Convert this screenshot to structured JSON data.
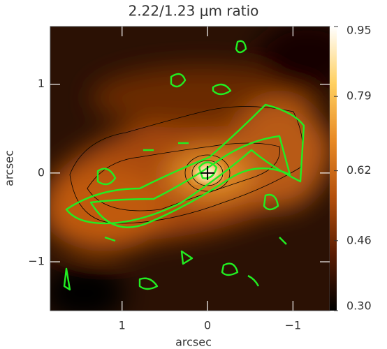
{
  "chart_data": {
    "type": "image",
    "title": "2.22/1.23 μm ratio",
    "x_label": "arcsec",
    "y_label": "arcsec",
    "xlim": [
      1.84,
      -1.43
    ],
    "ylim": [
      -1.55,
      1.65
    ],
    "xticks": [
      1,
      0,
      {
        "value": -1,
        "label": "−1"
      }
    ],
    "yticks": [
      {
        "value": -1,
        "label": "−1"
      },
      0,
      1
    ],
    "colormap": [
      "#000000",
      "#5a1c02",
      "#b4500c",
      "#e88a25",
      "#ffd060",
      "#ffffff"
    ],
    "colorbar": {
      "clim": [
        0.3,
        0.95
      ],
      "ticks": [
        0.95,
        0.79,
        0.62,
        0.46,
        {
          "value": 0.3,
          "label": "0.30"
        }
      ]
    },
    "marker": {
      "x": 0,
      "y": 0
    }
  }
}
